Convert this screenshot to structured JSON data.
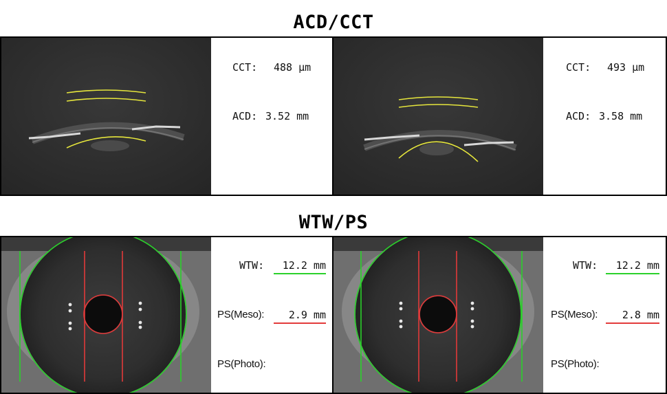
{
  "sections": {
    "acd_cct_title": "ACD/CCT",
    "wtw_ps_title": "WTW/PS"
  },
  "acd_cct": {
    "left": {
      "cct_label": "CCT:",
      "cct_value": "488 μm",
      "acd_label": "ACD:",
      "acd_value": "3.52 mm"
    },
    "right": {
      "cct_label": "CCT:",
      "cct_value": "493 μm",
      "acd_label": "ACD:",
      "acd_value": "3.58 mm"
    }
  },
  "wtw_ps": {
    "left": {
      "wtw_label": "WTW:",
      "wtw_value": "12.2 mm",
      "ps_meso_label": "PS(Meso):",
      "ps_meso_value": "2.9 mm",
      "ps_photo_label": "PS(Photo):",
      "ps_photo_value": ""
    },
    "right": {
      "wtw_label": "WTW:",
      "wtw_value": "12.2 mm",
      "ps_meso_label": "PS(Meso):",
      "ps_meso_value": "2.8 mm",
      "ps_photo_label": "PS(Photo):",
      "ps_photo_value": ""
    }
  },
  "colors": {
    "overlay_yellow": "#e6e63c",
    "wtw_green": "#2ad12a",
    "pupil_red": "#e23a3a",
    "image_bg": "#2e2e2e"
  }
}
